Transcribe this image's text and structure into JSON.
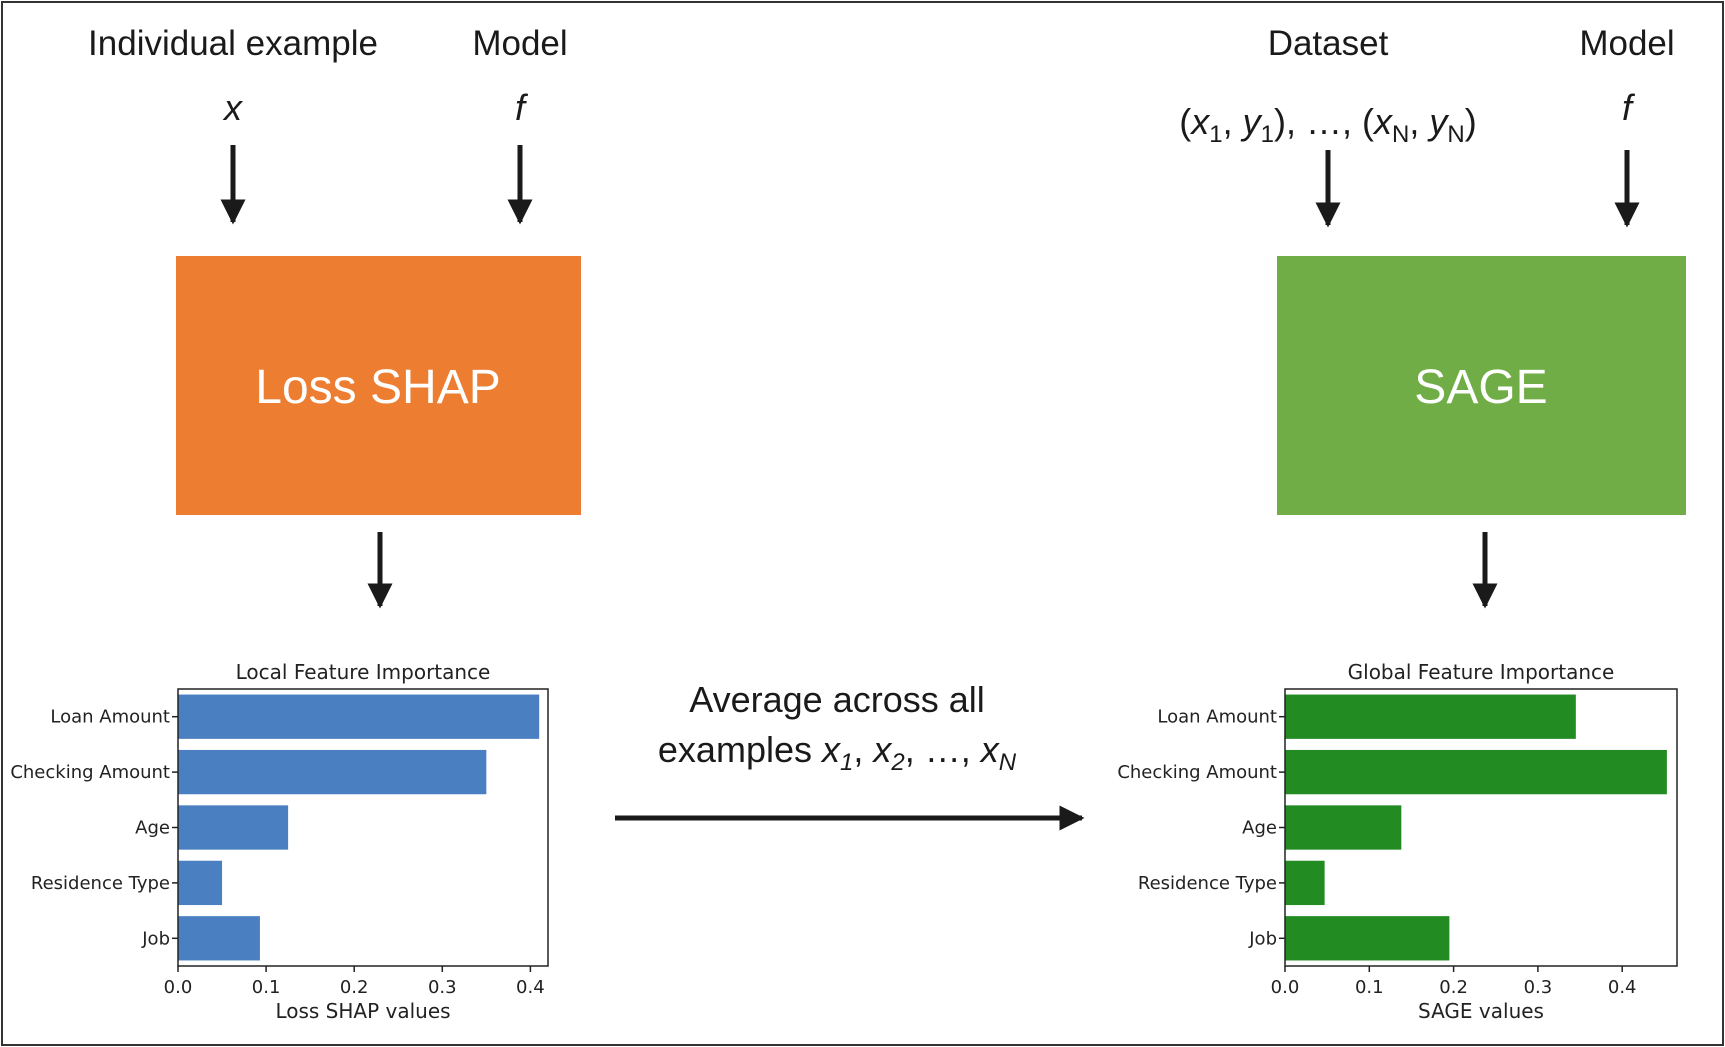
{
  "left": {
    "input_label": "Individual example",
    "input_symbol": "x",
    "model_label": "Model",
    "model_symbol": "f",
    "box_label": "Loss SHAP",
    "box_color": "#ed7d31"
  },
  "right": {
    "input_label": "Dataset",
    "input_symbol": {
      "p1": "(",
      "x1": "x",
      "s1": "1",
      "m1": ", ",
      "y1": "y",
      "t1": "1",
      "m2": "), …, (",
      "xN": "x",
      "sN": "N",
      "m3": ", ",
      "yN": "y",
      "tN": "N",
      "end": ")"
    },
    "model_label": "Model",
    "model_symbol": "f",
    "box_label": "SAGE",
    "box_color": "#70ad47"
  },
  "middle": {
    "line1": "Average across all",
    "line2_prefix": "examples ",
    "x1": "x",
    "s1": "1",
    "c1": ", ",
    "x2": "x",
    "s2": "2",
    "c2": ", …, ",
    "xN": "x",
    "sN": "N"
  },
  "chart_data": [
    {
      "type": "bar",
      "orientation": "horizontal",
      "title": "Local Feature Importance",
      "xlabel": "Loss SHAP values",
      "categories": [
        "Loan Amount",
        "Checking Amount",
        "Age",
        "Residence Type",
        "Job"
      ],
      "values": [
        0.41,
        0.35,
        0.125,
        0.05,
        0.093
      ],
      "xlim": [
        0,
        0.42
      ],
      "xticks": [
        "0.0",
        "0.1",
        "0.2",
        "0.3",
        "0.4"
      ],
      "bar_color": "#4a80c1"
    },
    {
      "type": "bar",
      "orientation": "horizontal",
      "title": "Global Feature Importance",
      "xlabel": "SAGE values",
      "categories": [
        "Loan Amount",
        "Checking Amount",
        "Age",
        "Residence Type",
        "Job"
      ],
      "values": [
        0.345,
        0.453,
        0.138,
        0.047,
        0.195
      ],
      "xlim": [
        0,
        0.465
      ],
      "xticks": [
        "0.0",
        "0.1",
        "0.2",
        "0.3",
        "0.4"
      ],
      "bar_color": "#228b22"
    }
  ]
}
